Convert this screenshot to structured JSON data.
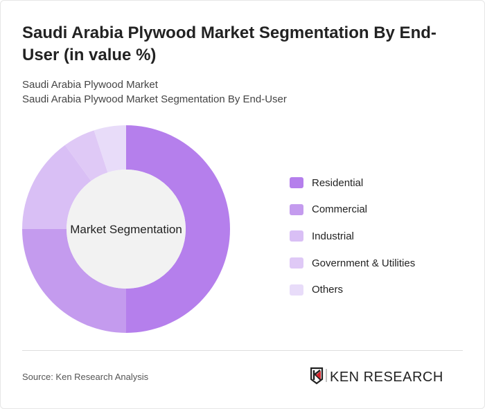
{
  "title": "Saudi Arabia Plywood Market Segmentation By End-User (in value %)",
  "subtitle1": "Saudi Arabia Plywood Market",
  "subtitle2": "Saudi Arabia Plywood Market Segmentation By End-User",
  "source": "Source: Ken Research Analysis",
  "logo_text": "KEN RESEARCH",
  "chart_data": {
    "type": "pie",
    "variant": "donut",
    "center_label": "Market Segmentation",
    "categories": [
      "Residential",
      "Commercial",
      "Industrial",
      "Government & Utilities",
      "Others"
    ],
    "values": [
      50,
      25,
      15,
      5,
      5
    ],
    "unit": "%",
    "colors": [
      "#b57fec",
      "#c49bee",
      "#d9bff5",
      "#dfc9f6",
      "#e8dcf9"
    ],
    "center_color": "#f2f2f2",
    "legend_position": "right"
  }
}
